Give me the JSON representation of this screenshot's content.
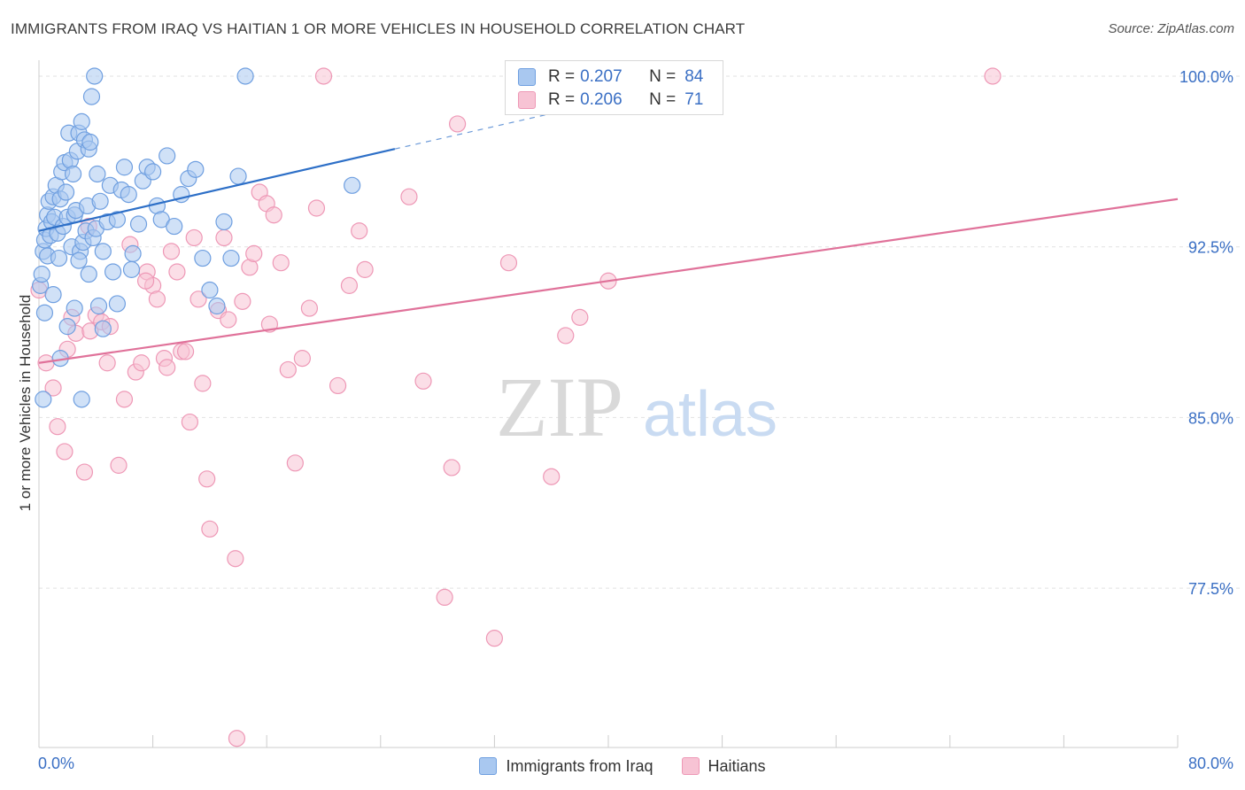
{
  "title": "IMMIGRANTS FROM IRAQ VS HAITIAN 1 OR MORE VEHICLES IN HOUSEHOLD CORRELATION CHART",
  "source": "Source: ZipAtlas.com",
  "watermark": {
    "zip": "ZIP",
    "atlas": "atlas"
  },
  "legend_top": [
    {
      "r_label": "R =",
      "r_value": "0.207",
      "n_label": "N =",
      "n_value": "84"
    },
    {
      "r_label": "R =",
      "r_value": "0.206",
      "n_label": "N =",
      "n_value": "71"
    }
  ],
  "legend_bottom": [
    "Immigrants from Iraq",
    "Haitians"
  ],
  "colors": {
    "blue_fill": "#a9c8f0",
    "blue_stroke": "#6f9fe0",
    "blue_line": "#2d6fc7",
    "pink_fill": "#f7c3d4",
    "pink_stroke": "#ee98b6",
    "pink_line": "#e0729a",
    "tick_text": "#3a6fc4",
    "grid": "#e2e2e2"
  },
  "chart_data": {
    "type": "scatter",
    "title": "IMMIGRANTS FROM IRAQ VS HAITIAN 1 OR MORE VEHICLES IN HOUSEHOLD CORRELATION CHART",
    "xlabel": "",
    "ylabel": "1 or more Vehicles in Household",
    "xlim": [
      0,
      80
    ],
    "ylim": [
      70.5,
      100.7
    ],
    "x_tick_labels": [
      "0.0%",
      "80.0%"
    ],
    "y_ticks": [
      100.0,
      92.5,
      85.0,
      77.5
    ],
    "y_tick_labels": [
      "100.0%",
      "92.5%",
      "85.0%",
      "77.5%"
    ],
    "grid": true,
    "legend_position": "top-center",
    "series": [
      {
        "name": "Immigrants from Iraq",
        "color": "#a9c8f0",
        "r": 0.207,
        "n": 84,
        "trend": {
          "x": [
            0,
            25
          ],
          "y": [
            93.2,
            96.8
          ],
          "dashed_to": {
            "x": 37,
            "y": 98.5
          }
        },
        "points": [
          [
            0.1,
            90.8
          ],
          [
            0.2,
            91.3
          ],
          [
            0.3,
            92.3
          ],
          [
            0.4,
            92.8
          ],
          [
            0.5,
            93.3
          ],
          [
            0.6,
            93.9
          ],
          [
            0.6,
            92.1
          ],
          [
            0.7,
            94.5
          ],
          [
            0.8,
            93.0
          ],
          [
            0.9,
            93.6
          ],
          [
            1.0,
            94.7
          ],
          [
            1.1,
            93.8
          ],
          [
            1.2,
            95.2
          ],
          [
            1.3,
            93.1
          ],
          [
            1.4,
            92.0
          ],
          [
            1.5,
            94.6
          ],
          [
            1.6,
            95.8
          ],
          [
            1.7,
            93.4
          ],
          [
            1.8,
            96.2
          ],
          [
            1.9,
            94.9
          ],
          [
            2.0,
            93.8
          ],
          [
            2.1,
            97.5
          ],
          [
            2.2,
            96.3
          ],
          [
            2.3,
            92.5
          ],
          [
            2.4,
            95.7
          ],
          [
            2.5,
            93.9
          ],
          [
            2.6,
            94.1
          ],
          [
            2.7,
            96.7
          ],
          [
            2.8,
            97.5
          ],
          [
            2.9,
            92.3
          ],
          [
            3.0,
            98.0
          ],
          [
            3.1,
            92.7
          ],
          [
            3.2,
            97.2
          ],
          [
            3.3,
            93.2
          ],
          [
            3.4,
            94.3
          ],
          [
            3.5,
            96.8
          ],
          [
            3.6,
            97.1
          ],
          [
            3.7,
            99.1
          ],
          [
            3.8,
            92.9
          ],
          [
            3.9,
            100.0
          ],
          [
            4.0,
            93.3
          ],
          [
            4.1,
            95.7
          ],
          [
            4.3,
            94.5
          ],
          [
            4.5,
            92.3
          ],
          [
            4.8,
            93.6
          ],
          [
            5.0,
            95.2
          ],
          [
            5.2,
            91.4
          ],
          [
            5.5,
            93.7
          ],
          [
            5.8,
            95.0
          ],
          [
            6.0,
            96.0
          ],
          [
            6.3,
            94.8
          ],
          [
            6.6,
            92.2
          ],
          [
            7.0,
            93.5
          ],
          [
            7.3,
            95.4
          ],
          [
            7.6,
            96.0
          ],
          [
            8.0,
            95.8
          ],
          [
            8.3,
            94.3
          ],
          [
            8.6,
            93.7
          ],
          [
            9.0,
            96.5
          ],
          [
            9.5,
            93.4
          ],
          [
            10.0,
            94.8
          ],
          [
            10.5,
            95.5
          ],
          [
            11.0,
            95.9
          ],
          [
            11.5,
            92.0
          ],
          [
            12.0,
            90.6
          ],
          [
            12.5,
            89.9
          ],
          [
            13.0,
            93.6
          ],
          [
            13.5,
            92.0
          ],
          [
            14.0,
            95.6
          ],
          [
            14.5,
            100.0
          ],
          [
            0.3,
            85.8
          ],
          [
            1.5,
            87.6
          ],
          [
            2.0,
            89.0
          ],
          [
            2.5,
            89.8
          ],
          [
            3.0,
            85.8
          ],
          [
            3.5,
            91.3
          ],
          [
            4.5,
            88.9
          ],
          [
            5.5,
            90.0
          ],
          [
            22.0,
            95.2
          ],
          [
            0.4,
            89.6
          ],
          [
            1.0,
            90.4
          ],
          [
            2.8,
            91.9
          ],
          [
            4.2,
            89.9
          ],
          [
            6.5,
            91.5
          ]
        ]
      },
      {
        "name": "Haitians",
        "color": "#f7c3d4",
        "r": 0.206,
        "n": 71,
        "trend": {
          "x": [
            0,
            80
          ],
          "y": [
            87.4,
            94.6
          ]
        },
        "points": [
          [
            0.0,
            90.6
          ],
          [
            0.5,
            87.4
          ],
          [
            1.0,
            86.3
          ],
          [
            1.3,
            84.6
          ],
          [
            1.8,
            83.5
          ],
          [
            2.3,
            89.4
          ],
          [
            2.6,
            88.7
          ],
          [
            3.2,
            82.6
          ],
          [
            3.6,
            88.8
          ],
          [
            4.0,
            89.5
          ],
          [
            4.4,
            89.2
          ],
          [
            4.8,
            87.4
          ],
          [
            5.0,
            89.0
          ],
          [
            5.6,
            82.9
          ],
          [
            6.0,
            85.8
          ],
          [
            6.4,
            92.6
          ],
          [
            6.8,
            87.0
          ],
          [
            7.2,
            87.4
          ],
          [
            7.6,
            91.4
          ],
          [
            8.0,
            90.8
          ],
          [
            8.3,
            90.2
          ],
          [
            8.8,
            87.6
          ],
          [
            9.0,
            87.2
          ],
          [
            9.3,
            92.3
          ],
          [
            9.7,
            91.4
          ],
          [
            10.0,
            87.9
          ],
          [
            10.3,
            87.9
          ],
          [
            10.6,
            84.8
          ],
          [
            10.9,
            92.9
          ],
          [
            11.2,
            90.2
          ],
          [
            11.5,
            86.5
          ],
          [
            11.8,
            82.3
          ],
          [
            12.0,
            80.1
          ],
          [
            12.6,
            89.7
          ],
          [
            13.0,
            92.9
          ],
          [
            13.3,
            89.3
          ],
          [
            13.8,
            78.8
          ],
          [
            14.3,
            90.1
          ],
          [
            14.8,
            91.6
          ],
          [
            15.1,
            92.2
          ],
          [
            15.5,
            94.9
          ],
          [
            16.0,
            94.4
          ],
          [
            16.5,
            93.9
          ],
          [
            17.0,
            91.8
          ],
          [
            17.5,
            87.1
          ],
          [
            18.0,
            83.0
          ],
          [
            18.5,
            87.6
          ],
          [
            19.0,
            89.8
          ],
          [
            19.5,
            94.2
          ],
          [
            20.0,
            100.0
          ],
          [
            21.0,
            86.4
          ],
          [
            21.8,
            90.8
          ],
          [
            22.5,
            93.2
          ],
          [
            22.9,
            91.5
          ],
          [
            26.0,
            94.7
          ],
          [
            27.0,
            86.6
          ],
          [
            28.5,
            77.1
          ],
          [
            29.0,
            82.8
          ],
          [
            29.4,
            97.9
          ],
          [
            32.0,
            75.3
          ],
          [
            33.0,
            91.8
          ],
          [
            36.0,
            82.4
          ],
          [
            37.0,
            88.6
          ],
          [
            38.0,
            89.4
          ],
          [
            40.0,
            91.0
          ],
          [
            67.0,
            100.0
          ],
          [
            13.9,
            70.9
          ],
          [
            3.5,
            93.4
          ],
          [
            7.5,
            91.0
          ],
          [
            2.0,
            88.0
          ],
          [
            16.2,
            89.1
          ]
        ]
      }
    ]
  }
}
